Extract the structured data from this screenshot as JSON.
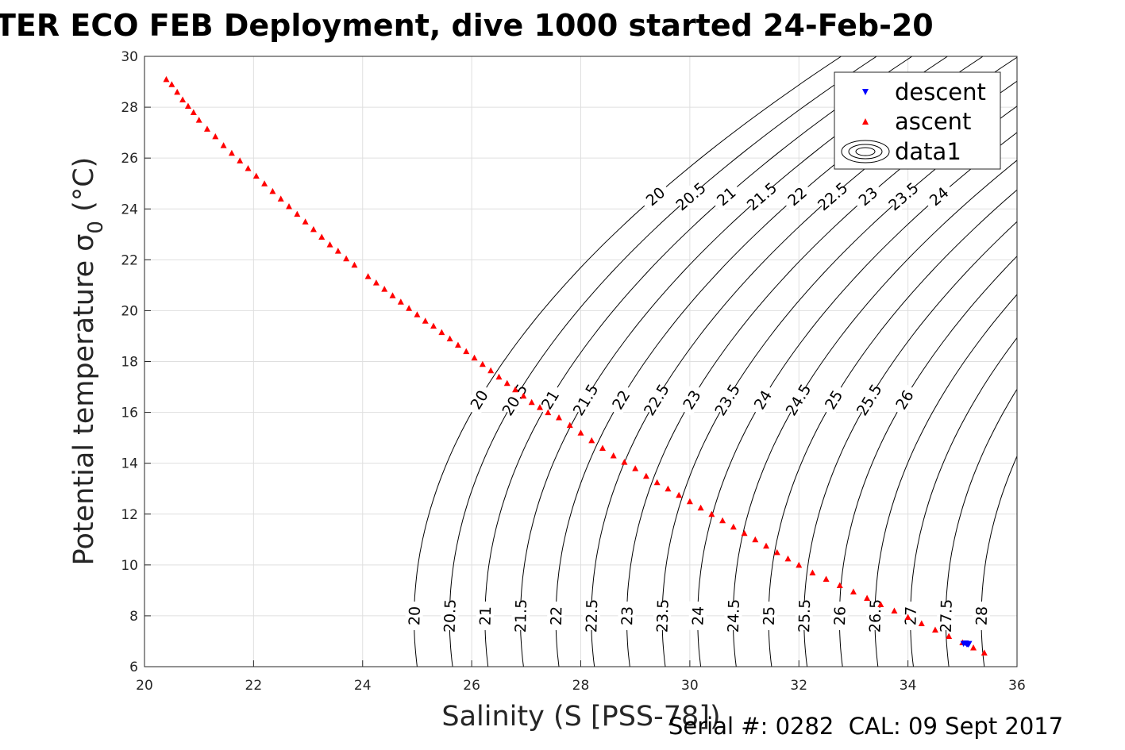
{
  "title": "TER ECO FEB Deployment, dive 1000 started 24-Feb-20",
  "footer": "Serial #: 0282  CAL: 09 Sept 2017",
  "chart_data": {
    "type": "scatter",
    "title": "TER ECO FEB Deployment, dive 1000 started 24-Feb-20",
    "xlabel": "Salinity (S [PSS-78])",
    "ylabel": "Potential temperature σ 0 (°C)",
    "xlim": [
      20,
      36
    ],
    "ylim": [
      6,
      30
    ],
    "xticks": [
      20,
      22,
      24,
      26,
      28,
      30,
      32,
      34,
      36
    ],
    "yticks": [
      6,
      8,
      10,
      12,
      14,
      16,
      18,
      20,
      22,
      24,
      26,
      28,
      30
    ],
    "grid": true,
    "legend_position": "top-right",
    "series": [
      {
        "name": "descent",
        "marker": "triangle-down",
        "color": "#0000ff",
        "points": [
          [
            35.02,
            6.9
          ],
          [
            35.08,
            6.88
          ],
          [
            35.12,
            6.9
          ],
          [
            35.06,
            6.92
          ],
          [
            35.1,
            6.87
          ]
        ]
      },
      {
        "name": "ascent",
        "marker": "triangle-up",
        "color": "#ff0000",
        "points": [
          [
            20.4,
            29.1
          ],
          [
            20.5,
            28.9
          ],
          [
            20.6,
            28.6
          ],
          [
            20.7,
            28.3
          ],
          [
            20.8,
            28.05
          ],
          [
            20.9,
            27.8
          ],
          [
            21.0,
            27.5
          ],
          [
            21.15,
            27.15
          ],
          [
            21.3,
            26.85
          ],
          [
            21.45,
            26.5
          ],
          [
            21.6,
            26.2
          ],
          [
            21.75,
            25.9
          ],
          [
            21.9,
            25.6
          ],
          [
            22.05,
            25.3
          ],
          [
            22.2,
            25.0
          ],
          [
            22.35,
            24.7
          ],
          [
            22.5,
            24.4
          ],
          [
            22.65,
            24.1
          ],
          [
            22.8,
            23.8
          ],
          [
            22.95,
            23.5
          ],
          [
            23.1,
            23.2
          ],
          [
            23.25,
            22.9
          ],
          [
            23.4,
            22.6
          ],
          [
            23.55,
            22.35
          ],
          [
            23.7,
            22.05
          ],
          [
            23.85,
            21.8
          ],
          [
            24.1,
            21.35
          ],
          [
            24.25,
            21.1
          ],
          [
            24.4,
            20.85
          ],
          [
            24.55,
            20.6
          ],
          [
            24.7,
            20.35
          ],
          [
            24.85,
            20.1
          ],
          [
            25.0,
            19.85
          ],
          [
            25.15,
            19.6
          ],
          [
            25.3,
            19.4
          ],
          [
            25.45,
            19.15
          ],
          [
            25.6,
            18.9
          ],
          [
            25.75,
            18.65
          ],
          [
            25.9,
            18.4
          ],
          [
            26.05,
            18.15
          ],
          [
            26.2,
            17.9
          ],
          [
            26.35,
            17.65
          ],
          [
            26.5,
            17.4
          ],
          [
            26.65,
            17.15
          ],
          [
            26.8,
            16.9
          ],
          [
            26.95,
            16.65
          ],
          [
            27.1,
            16.4
          ],
          [
            27.25,
            16.2
          ],
          [
            27.4,
            16.0
          ],
          [
            27.6,
            15.8
          ],
          [
            27.8,
            15.5
          ],
          [
            28.0,
            15.2
          ],
          [
            28.2,
            14.9
          ],
          [
            28.4,
            14.6
          ],
          [
            28.6,
            14.3
          ],
          [
            28.8,
            14.05
          ],
          [
            29.0,
            13.8
          ],
          [
            29.2,
            13.5
          ],
          [
            29.4,
            13.25
          ],
          [
            29.6,
            13.0
          ],
          [
            29.8,
            12.75
          ],
          [
            30.0,
            12.5
          ],
          [
            30.2,
            12.25
          ],
          [
            30.4,
            12.0
          ],
          [
            30.6,
            11.75
          ],
          [
            30.8,
            11.5
          ],
          [
            31.0,
            11.25
          ],
          [
            31.2,
            11.0
          ],
          [
            31.4,
            10.75
          ],
          [
            31.6,
            10.5
          ],
          [
            31.8,
            10.25
          ],
          [
            32.0,
            10.0
          ],
          [
            32.25,
            9.7
          ],
          [
            32.5,
            9.45
          ],
          [
            32.75,
            9.2
          ],
          [
            33.0,
            8.95
          ],
          [
            33.25,
            8.7
          ],
          [
            33.5,
            8.45
          ],
          [
            33.75,
            8.2
          ],
          [
            34.0,
            7.95
          ],
          [
            34.25,
            7.7
          ],
          [
            34.5,
            7.45
          ],
          [
            34.75,
            7.2
          ],
          [
            35.0,
            6.95
          ],
          [
            35.2,
            6.75
          ],
          [
            35.4,
            6.55
          ]
        ]
      },
      {
        "name": "data1",
        "marker": "contour",
        "color": "#000000"
      }
    ],
    "density_contours": {
      "type": "contour",
      "color": "#000000",
      "levels": [
        20,
        20.5,
        21,
        21.5,
        22,
        22.5,
        23,
        23.5,
        24,
        24.5,
        25,
        25.5,
        26,
        26.5,
        27,
        27.5,
        28
      ],
      "labels": {
        "top": [
          "20",
          "20.5",
          "21",
          "21.5",
          "22",
          "22.5",
          "23",
          "23.5",
          "24"
        ],
        "middle": [
          "20",
          "20.5",
          "21",
          "21.5",
          "22",
          "22.5",
          "23",
          "23.5",
          "24",
          "24.5",
          "25",
          "25.5",
          "26"
        ],
        "bottom": [
          "20",
          "20.5",
          "21",
          "21.5",
          "22",
          "22.5",
          "23",
          "23.5",
          "24",
          "24.5",
          "25",
          "25.5",
          "26",
          "26.5",
          "27",
          "27.5",
          "28"
        ]
      }
    }
  }
}
